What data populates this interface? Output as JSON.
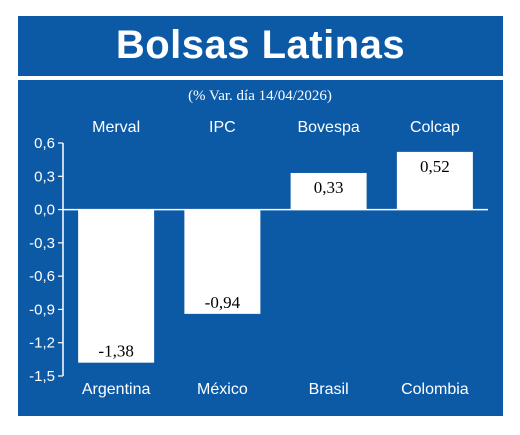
{
  "title": "Bolsas Latinas",
  "subtitle": "(% Var. día 14/04/2026)",
  "colors": {
    "background": "#0c5aa6",
    "bar": "#ffffff",
    "text": "#ffffff",
    "value_text": "#000000"
  },
  "chart_data": {
    "type": "bar",
    "title": "Bolsas Latinas",
    "subtitle": "(% Var. día 14/04/2026)",
    "categories": [
      "Argentina",
      "México",
      "Brasil",
      "Colombia"
    ],
    "index_names": [
      "Merval",
      "IPC",
      "Bovespa",
      "Colcap"
    ],
    "values": [
      -1.38,
      -0.94,
      0.33,
      0.52
    ],
    "value_labels": [
      "-1,38",
      "-0,94",
      "0,33",
      "0,52"
    ],
    "ylim": [
      -1.5,
      0.6
    ],
    "yticks": [
      0.6,
      0.3,
      0.0,
      -0.3,
      -0.6,
      -0.9,
      -1.2,
      -1.5
    ],
    "ytick_labels": [
      "0,6",
      "0,3",
      "0,0",
      "-0,3",
      "-0,6",
      "-0,9",
      "-1,2",
      "-1,5"
    ],
    "xlabel": "",
    "ylabel": "",
    "grid": false,
    "legend": "none"
  }
}
